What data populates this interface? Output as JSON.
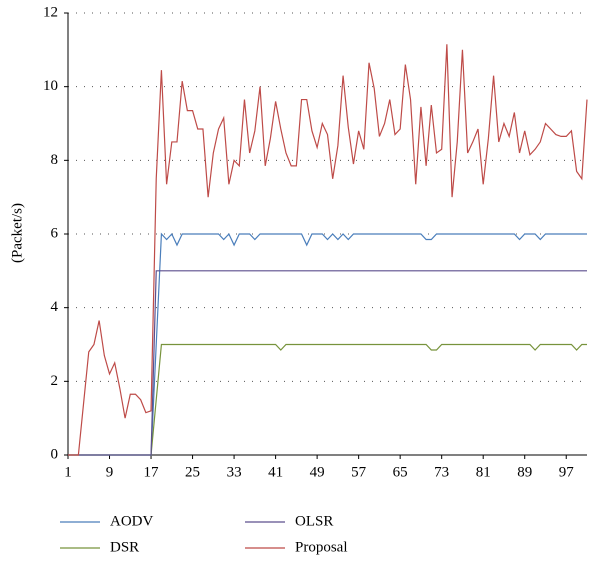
{
  "chart_data": {
    "type": "line",
    "y_label": "(Packet/s)",
    "x": [
      1,
      2,
      3,
      4,
      5,
      6,
      7,
      8,
      9,
      10,
      11,
      12,
      13,
      14,
      15,
      16,
      17,
      18,
      19,
      20,
      21,
      22,
      23,
      24,
      25,
      26,
      27,
      28,
      29,
      30,
      31,
      32,
      33,
      34,
      35,
      36,
      37,
      38,
      39,
      40,
      41,
      42,
      43,
      44,
      45,
      46,
      47,
      48,
      49,
      50,
      51,
      52,
      53,
      54,
      55,
      56,
      57,
      58,
      59,
      60,
      61,
      62,
      63,
      64,
      65,
      66,
      67,
      68,
      69,
      70,
      71,
      72,
      73,
      74,
      75,
      76,
      77,
      78,
      79,
      80,
      81,
      82,
      83,
      84,
      85,
      86,
      87,
      88,
      89,
      90,
      91,
      92,
      93,
      94,
      95,
      96,
      97,
      98,
      99,
      100,
      101
    ],
    "series": [
      {
        "name": "AODV",
        "color": "#4a7ebb",
        "values": [
          0,
          0,
          0,
          0,
          0,
          0,
          0,
          0,
          0,
          0,
          0,
          0,
          0,
          0,
          0,
          0,
          0,
          3,
          6,
          5.85,
          6,
          5.7,
          6,
          6,
          6,
          6,
          6,
          6,
          6,
          6,
          5.85,
          6,
          5.7,
          6,
          6,
          6,
          5.85,
          6,
          6,
          6,
          6,
          6,
          6,
          6,
          6,
          6,
          5.7,
          6,
          6,
          6,
          5.85,
          6,
          5.85,
          6,
          5.85,
          6,
          6,
          6,
          6,
          6,
          6,
          6,
          6,
          6,
          6,
          6,
          6,
          6,
          6,
          5.85,
          5.85,
          6,
          6,
          6,
          6,
          6,
          6,
          6,
          6,
          6,
          6,
          6,
          6,
          6,
          6,
          6,
          6,
          5.85,
          6,
          6,
          6,
          5.85,
          6,
          6,
          6,
          6,
          6,
          6,
          6,
          6,
          6
        ]
      },
      {
        "name": "DSR",
        "color": "#77933c",
        "values": [
          0,
          0,
          0,
          0,
          0,
          0,
          0,
          0,
          0,
          0,
          0,
          0,
          0,
          0,
          0,
          0,
          0,
          1.5,
          3,
          3,
          3,
          3,
          3,
          3,
          3,
          3,
          3,
          3,
          3,
          3,
          3,
          3,
          3,
          3,
          3,
          3,
          3,
          3,
          3,
          3,
          3,
          2.85,
          3,
          3,
          3,
          3,
          3,
          3,
          3,
          3,
          3,
          3,
          3,
          3,
          3,
          3,
          3,
          3,
          3,
          3,
          3,
          3,
          3,
          3,
          3,
          3,
          3,
          3,
          3,
          3,
          2.85,
          2.85,
          3,
          3,
          3,
          3,
          3,
          3,
          3,
          3,
          3,
          3,
          3,
          3,
          3,
          3,
          3,
          3,
          3,
          3,
          2.85,
          3,
          3,
          3,
          3,
          3,
          3,
          3,
          2.85,
          3,
          3
        ]
      },
      {
        "name": "OLSR",
        "color": "#5c4f8e",
        "values": [
          0,
          0,
          0,
          0,
          0,
          0,
          0,
          0,
          0,
          0,
          0,
          0,
          0,
          0,
          0,
          0,
          0,
          5,
          5,
          5,
          5,
          5,
          5,
          5,
          5,
          5,
          5,
          5,
          5,
          5,
          5,
          5,
          5,
          5,
          5,
          5,
          5,
          5,
          5,
          5,
          5,
          5,
          5,
          5,
          5,
          5,
          5,
          5,
          5,
          5,
          5,
          5,
          5,
          5,
          5,
          5,
          5,
          5,
          5,
          5,
          5,
          5,
          5,
          5,
          5,
          5,
          5,
          5,
          5,
          5,
          5,
          5,
          5,
          5,
          5,
          5,
          5,
          5,
          5,
          5,
          5,
          5,
          5,
          5,
          5,
          5,
          5,
          5,
          5,
          5,
          5,
          5,
          5,
          5,
          5,
          5,
          5,
          5,
          5,
          5,
          5
        ]
      },
      {
        "name": "Proposal",
        "color": "#be4b48",
        "values": [
          0,
          0,
          0,
          1.4,
          2.8,
          3.0,
          3.65,
          2.7,
          2.2,
          2.5,
          1.8,
          1.0,
          1.65,
          1.65,
          1.5,
          1.15,
          1.2,
          7.5,
          10.45,
          7.35,
          8.5,
          8.5,
          10.15,
          9.35,
          9.35,
          8.85,
          8.85,
          7.0,
          8.2,
          8.85,
          9.15,
          7.35,
          8.0,
          7.85,
          9.65,
          8.2,
          8.8,
          10.0,
          7.85,
          8.6,
          9.6,
          8.85,
          8.2,
          7.85,
          7.85,
          9.65,
          9.65,
          8.8,
          8.35,
          9.0,
          8.7,
          7.5,
          8.4,
          10.3,
          8.9,
          7.9,
          8.8,
          8.3,
          10.65,
          9.95,
          8.65,
          9.0,
          9.65,
          8.7,
          8.85,
          10.6,
          9.65,
          7.35,
          9.45,
          7.85,
          9.5,
          8.2,
          8.3,
          11.15,
          7.0,
          8.5,
          11.0,
          8.2,
          8.5,
          8.85,
          7.35,
          8.6,
          10.3,
          8.5,
          9.0,
          8.65,
          9.3,
          8.2,
          8.8,
          8.15,
          8.3,
          8.5,
          9.0,
          8.85,
          8.7,
          8.65,
          8.65,
          8.8,
          7.7,
          7.5,
          9.65
        ]
      }
    ],
    "xlim": [
      1,
      101
    ],
    "xticks": [
      1,
      9,
      17,
      25,
      33,
      41,
      49,
      57,
      65,
      73,
      81,
      89,
      97
    ],
    "ylim": [
      0,
      12
    ],
    "yticks": [
      0,
      2,
      4,
      6,
      8,
      10,
      12
    ],
    "grid": true
  }
}
